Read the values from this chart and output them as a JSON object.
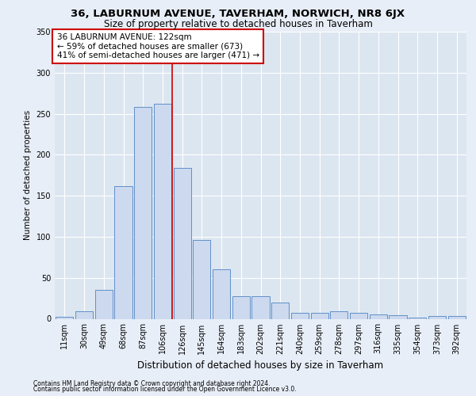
{
  "title_line1": "36, LABURNUM AVENUE, TAVERHAM, NORWICH, NR8 6JX",
  "title_line2": "Size of property relative to detached houses in Taverham",
  "xlabel": "Distribution of detached houses by size in Taverham",
  "ylabel": "Number of detached properties",
  "footnote1": "Contains HM Land Registry data © Crown copyright and database right 2024.",
  "footnote2": "Contains public sector information licensed under the Open Government Licence v3.0.",
  "bar_labels": [
    "11sqm",
    "30sqm",
    "49sqm",
    "68sqm",
    "87sqm",
    "106sqm",
    "126sqm",
    "145sqm",
    "164sqm",
    "183sqm",
    "202sqm",
    "221sqm",
    "240sqm",
    "259sqm",
    "278sqm",
    "297sqm",
    "316sqm",
    "335sqm",
    "354sqm",
    "373sqm",
    "392sqm"
  ],
  "bar_values": [
    2,
    9,
    35,
    162,
    258,
    262,
    184,
    96,
    60,
    28,
    28,
    20,
    7,
    7,
    9,
    7,
    5,
    4,
    1,
    3,
    3
  ],
  "bar_color": "#ccd9ee",
  "bar_edge_color": "#6090c8",
  "vline_x": 5.5,
  "vline_color": "#cc0000",
  "annotation_text": "36 LABURNUM AVENUE: 122sqm\n← 59% of detached houses are smaller (673)\n41% of semi-detached houses are larger (471) →",
  "annotation_box_color": "#ffffff",
  "annotation_box_edge": "#cc0000",
  "ylim": [
    0,
    350
  ],
  "yticks": [
    0,
    50,
    100,
    150,
    200,
    250,
    300,
    350
  ],
  "background_color": "#e8eef7",
  "plot_background": "#dce6f1",
  "grid_color": "#ffffff",
  "title_fontsize": 9.5,
  "subtitle_fontsize": 8.5,
  "ylabel_fontsize": 7.5,
  "xlabel_fontsize": 8.5,
  "tick_fontsize": 7,
  "annot_fontsize": 7.5,
  "footnote_fontsize": 5.5
}
